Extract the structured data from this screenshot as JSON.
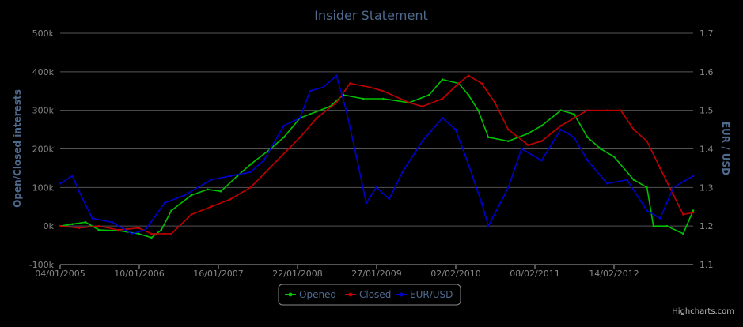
{
  "chart_data": {
    "type": "line",
    "title": "Insider Statement",
    "ylabel": "Open/Closed interests",
    "y2label": "EUR / USD",
    "ylim": [
      -100000,
      500000
    ],
    "y2lim": [
      1.1,
      1.7
    ],
    "yticks": [
      "-100k",
      "0k",
      "100k",
      "200k",
      "300k",
      "400k",
      "500k"
    ],
    "y2ticks": [
      "1.1",
      "1.2",
      "1.3",
      "1.4",
      "1.5",
      "1.6",
      "1.7"
    ],
    "xticks": [
      "04/01/2005",
      "10/01/2006",
      "16/01/2007",
      "22/01/2008",
      "27/01/2009",
      "02/02/2010",
      "08/02/2011",
      "14/02/2012"
    ],
    "x_range": [
      "2005-01-04",
      "2012-12-31"
    ],
    "grid": true,
    "legend": "bottom-center",
    "series": [
      {
        "name": "Opened",
        "color": "#00c000",
        "axis": "left",
        "points": [
          [
            "2005-01-04",
            0
          ],
          [
            "2005-03-01",
            5000
          ],
          [
            "2005-05-01",
            10000
          ],
          [
            "2005-07-01",
            -10000
          ],
          [
            "2005-10-01",
            -12000
          ],
          [
            "2006-01-01",
            -20000
          ],
          [
            "2006-03-01",
            -30000
          ],
          [
            "2006-04-15",
            -10000
          ],
          [
            "2006-06-01",
            40000
          ],
          [
            "2006-09-01",
            80000
          ],
          [
            "2006-11-15",
            95000
          ],
          [
            "2007-01-15",
            90000
          ],
          [
            "2007-04-01",
            130000
          ],
          [
            "2007-06-01",
            160000
          ],
          [
            "2007-09-01",
            200000
          ],
          [
            "2007-11-01",
            230000
          ],
          [
            "2008-01-15",
            280000
          ],
          [
            "2008-03-01",
            290000
          ],
          [
            "2008-06-01",
            310000
          ],
          [
            "2008-08-01",
            340000
          ],
          [
            "2008-11-01",
            330000
          ],
          [
            "2009-02-01",
            330000
          ],
          [
            "2009-06-01",
            320000
          ],
          [
            "2009-09-01",
            340000
          ],
          [
            "2009-11-01",
            380000
          ],
          [
            "2010-01-15",
            370000
          ],
          [
            "2010-03-01",
            340000
          ],
          [
            "2010-04-15",
            300000
          ],
          [
            "2010-06-01",
            230000
          ],
          [
            "2010-09-01",
            220000
          ],
          [
            "2010-12-01",
            240000
          ],
          [
            "2011-02-01",
            260000
          ],
          [
            "2011-05-01",
            300000
          ],
          [
            "2011-07-01",
            290000
          ],
          [
            "2011-09-01",
            230000
          ],
          [
            "2011-11-01",
            200000
          ],
          [
            "2012-01-01",
            180000
          ],
          [
            "2012-04-01",
            120000
          ],
          [
            "2012-06-01",
            100000
          ],
          [
            "2012-07-01",
            0
          ],
          [
            "2012-09-01",
            0
          ],
          [
            "2012-11-15",
            -20000
          ],
          [
            "2012-12-31",
            40000
          ]
        ]
      },
      {
        "name": "Closed",
        "color": "#c00000",
        "axis": "left",
        "points": [
          [
            "2005-01-04",
            0
          ],
          [
            "2005-04-01",
            -5000
          ],
          [
            "2005-07-01",
            0
          ],
          [
            "2005-10-01",
            -10000
          ],
          [
            "2006-01-01",
            -5000
          ],
          [
            "2006-03-01",
            -20000
          ],
          [
            "2006-06-01",
            -20000
          ],
          [
            "2006-09-01",
            30000
          ],
          [
            "2006-12-01",
            50000
          ],
          [
            "2007-03-01",
            70000
          ],
          [
            "2007-06-01",
            100000
          ],
          [
            "2007-10-01",
            170000
          ],
          [
            "2008-01-15",
            230000
          ],
          [
            "2008-04-01",
            280000
          ],
          [
            "2008-07-01",
            320000
          ],
          [
            "2008-09-01",
            370000
          ],
          [
            "2008-12-01",
            360000
          ],
          [
            "2009-02-01",
            350000
          ],
          [
            "2009-06-01",
            320000
          ],
          [
            "2009-08-01",
            310000
          ],
          [
            "2009-11-01",
            330000
          ],
          [
            "2010-01-15",
            370000
          ],
          [
            "2010-03-01",
            390000
          ],
          [
            "2010-05-01",
            370000
          ],
          [
            "2010-07-01",
            320000
          ],
          [
            "2010-09-01",
            250000
          ],
          [
            "2010-12-01",
            210000
          ],
          [
            "2011-02-01",
            220000
          ],
          [
            "2011-05-01",
            260000
          ],
          [
            "2011-07-01",
            280000
          ],
          [
            "2011-09-01",
            300000
          ],
          [
            "2011-12-01",
            300000
          ],
          [
            "2012-02-01",
            300000
          ],
          [
            "2012-04-01",
            250000
          ],
          [
            "2012-06-01",
            220000
          ],
          [
            "2012-08-01",
            150000
          ],
          [
            "2012-10-01",
            80000
          ],
          [
            "2012-11-15",
            30000
          ],
          [
            "2012-12-31",
            35000
          ]
        ]
      },
      {
        "name": "EUR/USD",
        "color": "#0000cc",
        "axis": "right",
        "points": [
          [
            "2005-01-04",
            1.31
          ],
          [
            "2005-03-01",
            1.33
          ],
          [
            "2005-04-01",
            1.29
          ],
          [
            "2005-06-01",
            1.22
          ],
          [
            "2005-09-01",
            1.21
          ],
          [
            "2005-12-01",
            1.18
          ],
          [
            "2006-02-01",
            1.19
          ],
          [
            "2006-05-01",
            1.26
          ],
          [
            "2006-08-01",
            1.28
          ],
          [
            "2006-12-01",
            1.32
          ],
          [
            "2007-03-01",
            1.33
          ],
          [
            "2007-06-01",
            1.34
          ],
          [
            "2007-08-01",
            1.37
          ],
          [
            "2007-11-01",
            1.46
          ],
          [
            "2008-01-15",
            1.48
          ],
          [
            "2008-03-01",
            1.55
          ],
          [
            "2008-05-01",
            1.56
          ],
          [
            "2008-07-01",
            1.59
          ],
          [
            "2008-08-15",
            1.5
          ],
          [
            "2008-10-01",
            1.38
          ],
          [
            "2008-11-15",
            1.26
          ],
          [
            "2009-01-01",
            1.3
          ],
          [
            "2009-03-01",
            1.27
          ],
          [
            "2009-05-01",
            1.34
          ],
          [
            "2009-08-01",
            1.42
          ],
          [
            "2009-11-01",
            1.48
          ],
          [
            "2010-01-01",
            1.45
          ],
          [
            "2010-03-01",
            1.36
          ],
          [
            "2010-05-01",
            1.26
          ],
          [
            "2010-06-01",
            1.2
          ],
          [
            "2010-09-01",
            1.3
          ],
          [
            "2010-11-01",
            1.4
          ],
          [
            "2011-02-01",
            1.37
          ],
          [
            "2011-05-01",
            1.45
          ],
          [
            "2011-07-01",
            1.43
          ],
          [
            "2011-09-01",
            1.37
          ],
          [
            "2011-12-01",
            1.31
          ],
          [
            "2012-03-01",
            1.32
          ],
          [
            "2012-06-01",
            1.24
          ],
          [
            "2012-08-01",
            1.22
          ],
          [
            "2012-10-01",
            1.3
          ],
          [
            "2012-12-31",
            1.33
          ]
        ]
      }
    ]
  },
  "legend_items": [
    {
      "label": "Opened",
      "color": "#00c000"
    },
    {
      "label": "Closed",
      "color": "#c00000"
    },
    {
      "label": "EUR/USD",
      "color": "#0000cc"
    }
  ],
  "credits": "Highcharts.com"
}
